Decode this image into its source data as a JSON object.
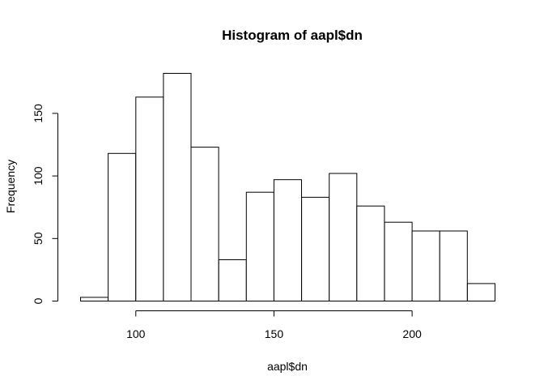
{
  "chart_data": {
    "type": "bar",
    "title": "Histogram of aapl$dn",
    "xlabel": "aapl$dn",
    "ylabel": "Frequency",
    "bin_edges": [
      80,
      90,
      100,
      110,
      120,
      130,
      140,
      150,
      160,
      170,
      180,
      190,
      200,
      210,
      220,
      230
    ],
    "values": [
      3,
      118,
      163,
      182,
      123,
      33,
      87,
      97,
      83,
      102,
      76,
      63,
      56,
      56,
      14
    ],
    "xlim": [
      80,
      230
    ],
    "ylim": [
      0,
      182
    ],
    "x_ticks": [
      100,
      150,
      200
    ],
    "y_ticks": [
      0,
      50,
      100,
      150
    ],
    "grid": false,
    "legend": "none",
    "colors": {
      "bar_fill": "#ffffff",
      "bar_stroke": "#000000"
    }
  }
}
